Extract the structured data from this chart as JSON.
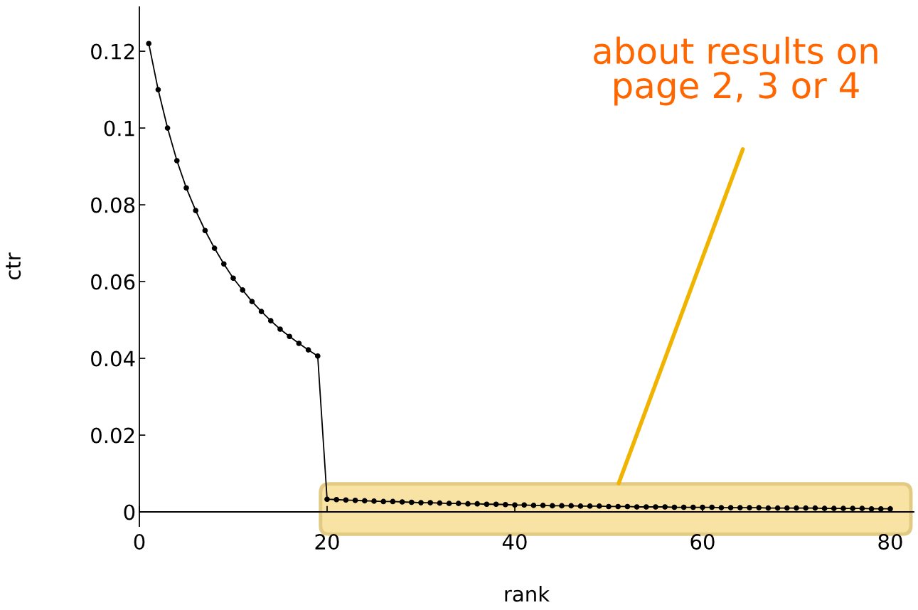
{
  "chart_data": {
    "type": "line",
    "xlabel": "rank",
    "ylabel": "ctr",
    "annotations": [
      "about results on\npage 2, 3 or 4"
    ],
    "x": [
      1,
      2,
      3,
      4,
      5,
      6,
      7,
      8,
      9,
      10,
      11,
      12,
      13,
      14,
      15,
      16,
      17,
      18,
      19,
      20,
      21,
      22,
      23,
      24,
      25,
      26,
      27,
      28,
      29,
      30,
      31,
      32,
      33,
      34,
      35,
      36,
      37,
      38,
      39,
      40,
      41,
      42,
      43,
      44,
      45,
      46,
      47,
      48,
      49,
      50,
      51,
      52,
      53,
      54,
      55,
      56,
      57,
      58,
      59,
      60,
      61,
      62,
      63,
      64,
      65,
      66,
      67,
      68,
      69,
      70,
      71,
      72,
      73,
      74,
      75,
      76,
      77,
      78,
      79,
      80
    ],
    "series": [
      {
        "color": "#000000",
        "values": [
          0.122,
          0.11,
          0.1,
          0.0915,
          0.0844,
          0.0785,
          0.0733,
          0.0687,
          0.0646,
          0.0609,
          0.0578,
          0.0548,
          0.0522,
          0.0498,
          0.0476,
          0.0457,
          0.0439,
          0.0422,
          0.0406,
          0.0033,
          0.0032,
          0.0031,
          0.003,
          0.0029,
          0.0028,
          0.0027,
          0.0027,
          0.0026,
          0.0025,
          0.0024,
          0.0024,
          0.0023,
          0.0022,
          0.0022,
          0.0021,
          0.0021,
          0.002,
          0.002,
          0.0019,
          0.0018,
          0.0018,
          0.0017,
          0.0017,
          0.0016,
          0.0016,
          0.0016,
          0.0015,
          0.0015,
          0.0015,
          0.0014,
          0.0014,
          0.0014,
          0.0013,
          0.0013,
          0.0013,
          0.0013,
          0.0012,
          0.0012,
          0.0012,
          0.0012,
          0.0012,
          0.0011,
          0.0011,
          0.0011,
          0.0011,
          0.0011,
          0.001,
          0.001,
          0.001,
          0.001,
          0.001,
          0.001,
          0.0009,
          0.0009,
          0.0009,
          0.0009,
          0.0009,
          0.0008,
          0.0008,
          0.0008
        ]
      }
    ],
    "xlim": [
      0,
      82.5
    ],
    "ylim": [
      -0.0037,
      0.1315
    ],
    "xticks": [
      0,
      20,
      40,
      60,
      80
    ],
    "yticks": [
      0,
      0.02,
      0.04,
      0.06,
      0.08,
      0.1,
      0.12
    ],
    "marker": "circle",
    "line_style": "solid",
    "grid": false
  }
}
